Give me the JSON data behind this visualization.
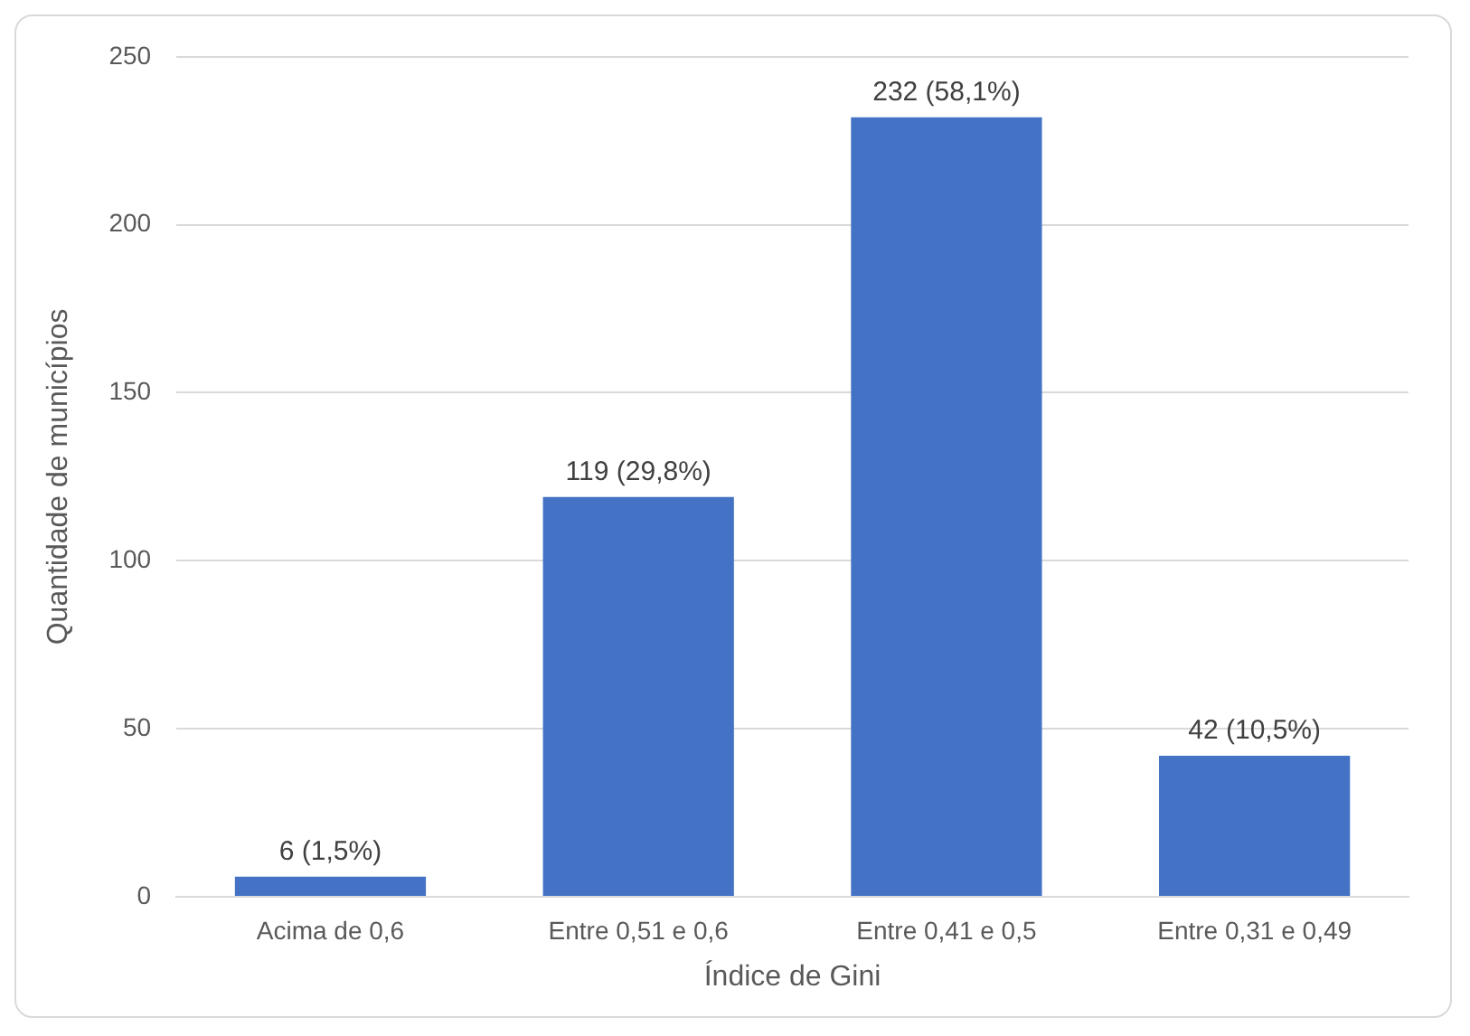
{
  "chart_data": {
    "type": "bar",
    "xlabel": "Índice de Gini",
    "ylabel": "Quantidade de municípios",
    "categories": [
      "Acima de 0,6",
      "Entre 0,51 e 0,6",
      "Entre 0,41 e 0,5",
      "Entre 0,31 e 0,49"
    ],
    "values": [
      6,
      119,
      232,
      42
    ],
    "value_labels": [
      "6 (1,5%)",
      "119 (29,8%)",
      "232 (58,1%)",
      "42 (10,5%)"
    ],
    "color": "#4472c4",
    "ylim": [
      0,
      250
    ],
    "yticks": [
      0,
      50,
      100,
      150,
      200,
      250
    ],
    "grid": "y",
    "legend": false
  }
}
